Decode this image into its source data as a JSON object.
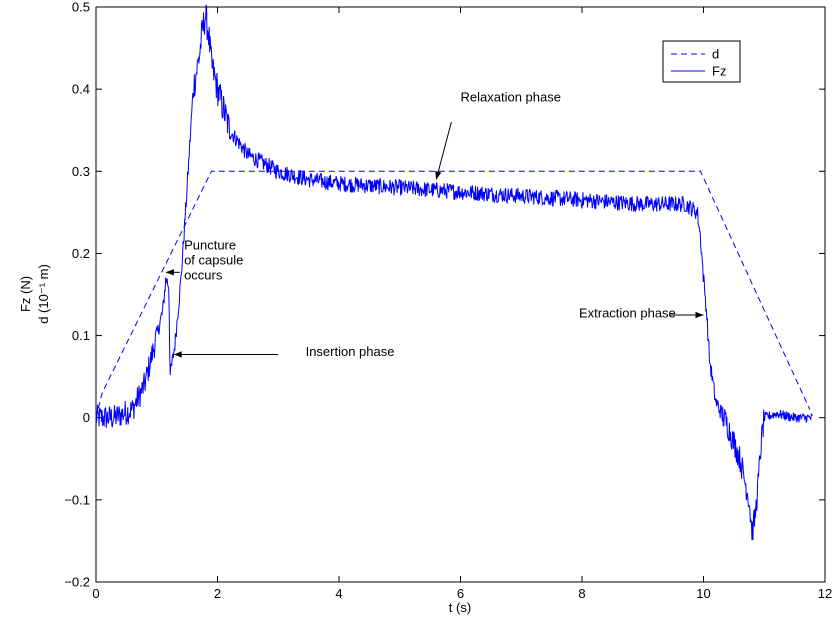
{
  "chart_data": {
    "type": "line",
    "xlabel": "t (s)",
    "ylabel_lines": [
      "Fz (N)",
      "d (10⁻¹ m)"
    ],
    "xlim": [
      0,
      12
    ],
    "ylim": [
      -0.2,
      0.5
    ],
    "xticks": [
      0,
      2,
      4,
      6,
      8,
      10,
      12
    ],
    "yticks": [
      -0.2,
      -0.1,
      0,
      0.1,
      0.2,
      0.3,
      0.4,
      0.5
    ],
    "ytick_labels": [
      "−0.2",
      "−0.1",
      "0",
      "0.1",
      "0.2",
      "0.3",
      "0.4",
      "0.5"
    ],
    "grid": false,
    "legend": {
      "placement": "top-right",
      "entries": [
        {
          "name": "d",
          "style": "dashed"
        },
        {
          "name": "Fz",
          "style": "solid"
        }
      ]
    },
    "line_color": "#0000ff",
    "series": [
      {
        "name": "d",
        "style": "dashed",
        "x": [
          0.0,
          0.1,
          1.9,
          9.95,
          11.75
        ],
        "y": [
          0.0,
          0.03,
          0.3,
          0.3,
          0.01
        ]
      },
      {
        "name": "Fz",
        "style": "solid",
        "noisy": true,
        "x": [
          0.0,
          0.3,
          0.6,
          0.8,
          1.0,
          1.1,
          1.15,
          1.2,
          1.22,
          1.3,
          1.4,
          1.5,
          1.6,
          1.7,
          1.75,
          1.8,
          1.85,
          1.9,
          2.0,
          2.2,
          2.5,
          3.0,
          3.5,
          4.0,
          5.0,
          6.0,
          7.0,
          8.0,
          9.0,
          9.7,
          9.9,
          9.95,
          10.0,
          10.05,
          10.1,
          10.2,
          10.4,
          10.6,
          10.75,
          10.8,
          10.85,
          10.9,
          10.95,
          11.0,
          11.2,
          11.5,
          11.8
        ],
        "y": [
          0.0,
          0.0,
          0.01,
          0.04,
          0.1,
          0.13,
          0.17,
          0.16,
          0.05,
          0.09,
          0.17,
          0.28,
          0.4,
          0.44,
          0.47,
          0.49,
          0.47,
          0.43,
          0.4,
          0.35,
          0.32,
          0.3,
          0.29,
          0.285,
          0.28,
          0.275,
          0.27,
          0.265,
          0.26,
          0.26,
          0.25,
          0.22,
          0.17,
          0.13,
          0.07,
          0.02,
          -0.01,
          -0.05,
          -0.1,
          -0.14,
          -0.12,
          -0.08,
          -0.03,
          0.0,
          0.005,
          0.0,
          0.0
        ]
      }
    ],
    "annotations": [
      {
        "lines": [
          "Puncture",
          "of capsule",
          "occurs"
        ],
        "text_x": 1.45,
        "text_y": 0.205,
        "arrow_from": [
          1.38,
          0.177
        ],
        "arrow_to": [
          1.15,
          0.177
        ]
      },
      {
        "lines": [
          "Insertion phase"
        ],
        "text_x": 3.45,
        "text_y": 0.075,
        "arrow_from": [
          3.0,
          0.077
        ],
        "arrow_to": [
          1.28,
          0.077
        ]
      },
      {
        "lines": [
          "Relaxation phase"
        ],
        "text_x": 6.0,
        "text_y": 0.385,
        "arrow_from": [
          5.85,
          0.36
        ],
        "arrow_to": [
          5.6,
          0.29
        ]
      },
      {
        "lines": [
          "Extraction phase"
        ],
        "text_x": 7.95,
        "text_y": 0.122,
        "arrow_from": [
          9.45,
          0.125
        ],
        "arrow_to": [
          10.0,
          0.125
        ]
      }
    ]
  }
}
